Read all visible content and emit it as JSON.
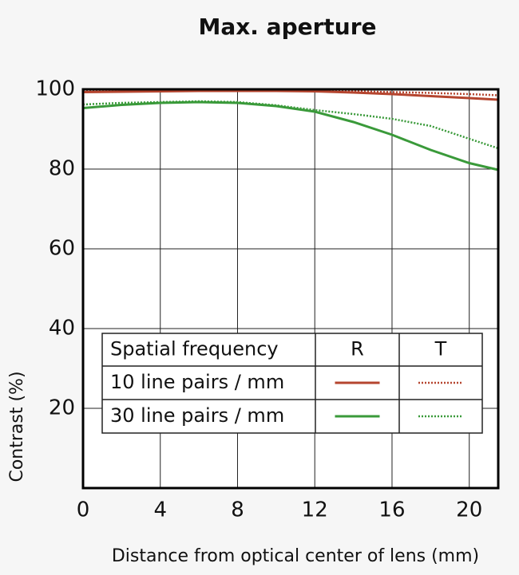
{
  "chart_data": {
    "type": "line",
    "title": "Max. aperture",
    "x_label": "Distance from optical center of lens (mm)",
    "y_label": "Contrast (%)",
    "x": [
      0,
      2,
      4,
      6,
      8,
      10,
      12,
      14,
      16,
      18,
      20,
      21.5
    ],
    "series": [
      {
        "color": "#b5452f",
        "style": "solid",
        "values": [
          99.3,
          99.4,
          99.5,
          99.6,
          99.6,
          99.6,
          99.5,
          99.2,
          98.8,
          98.3,
          97.8,
          97.4
        ]
      },
      {
        "color": "#b5452f",
        "style": "dotted",
        "values": [
          99.5,
          99.6,
          99.6,
          99.7,
          99.7,
          99.7,
          99.6,
          99.5,
          99.3,
          99.1,
          98.8,
          98.5
        ]
      },
      {
        "color": "#3a9a3a",
        "style": "solid",
        "values": [
          95.3,
          96.1,
          96.6,
          96.8,
          96.6,
          95.8,
          94.4,
          91.8,
          88.6,
          84.8,
          81.5,
          79.8
        ]
      },
      {
        "color": "#3a9a3a",
        "style": "dotted",
        "values": [
          96.2,
          96.6,
          96.8,
          97.0,
          96.8,
          96.0,
          94.8,
          93.8,
          92.6,
          90.8,
          87.6,
          85.2
        ]
      }
    ],
    "legend": {
      "title": "Spatial frequency",
      "columns": [
        "R",
        "T"
      ],
      "rows": [
        "10 line pairs / mm",
        "30 line pairs / mm"
      ]
    },
    "xlim": [
      0,
      21.5
    ],
    "ylim": [
      0,
      100
    ],
    "xticks": [
      0,
      4,
      8,
      12,
      16,
      20
    ],
    "yticks": [
      20,
      40,
      60,
      80,
      100
    ],
    "grid": true
  }
}
